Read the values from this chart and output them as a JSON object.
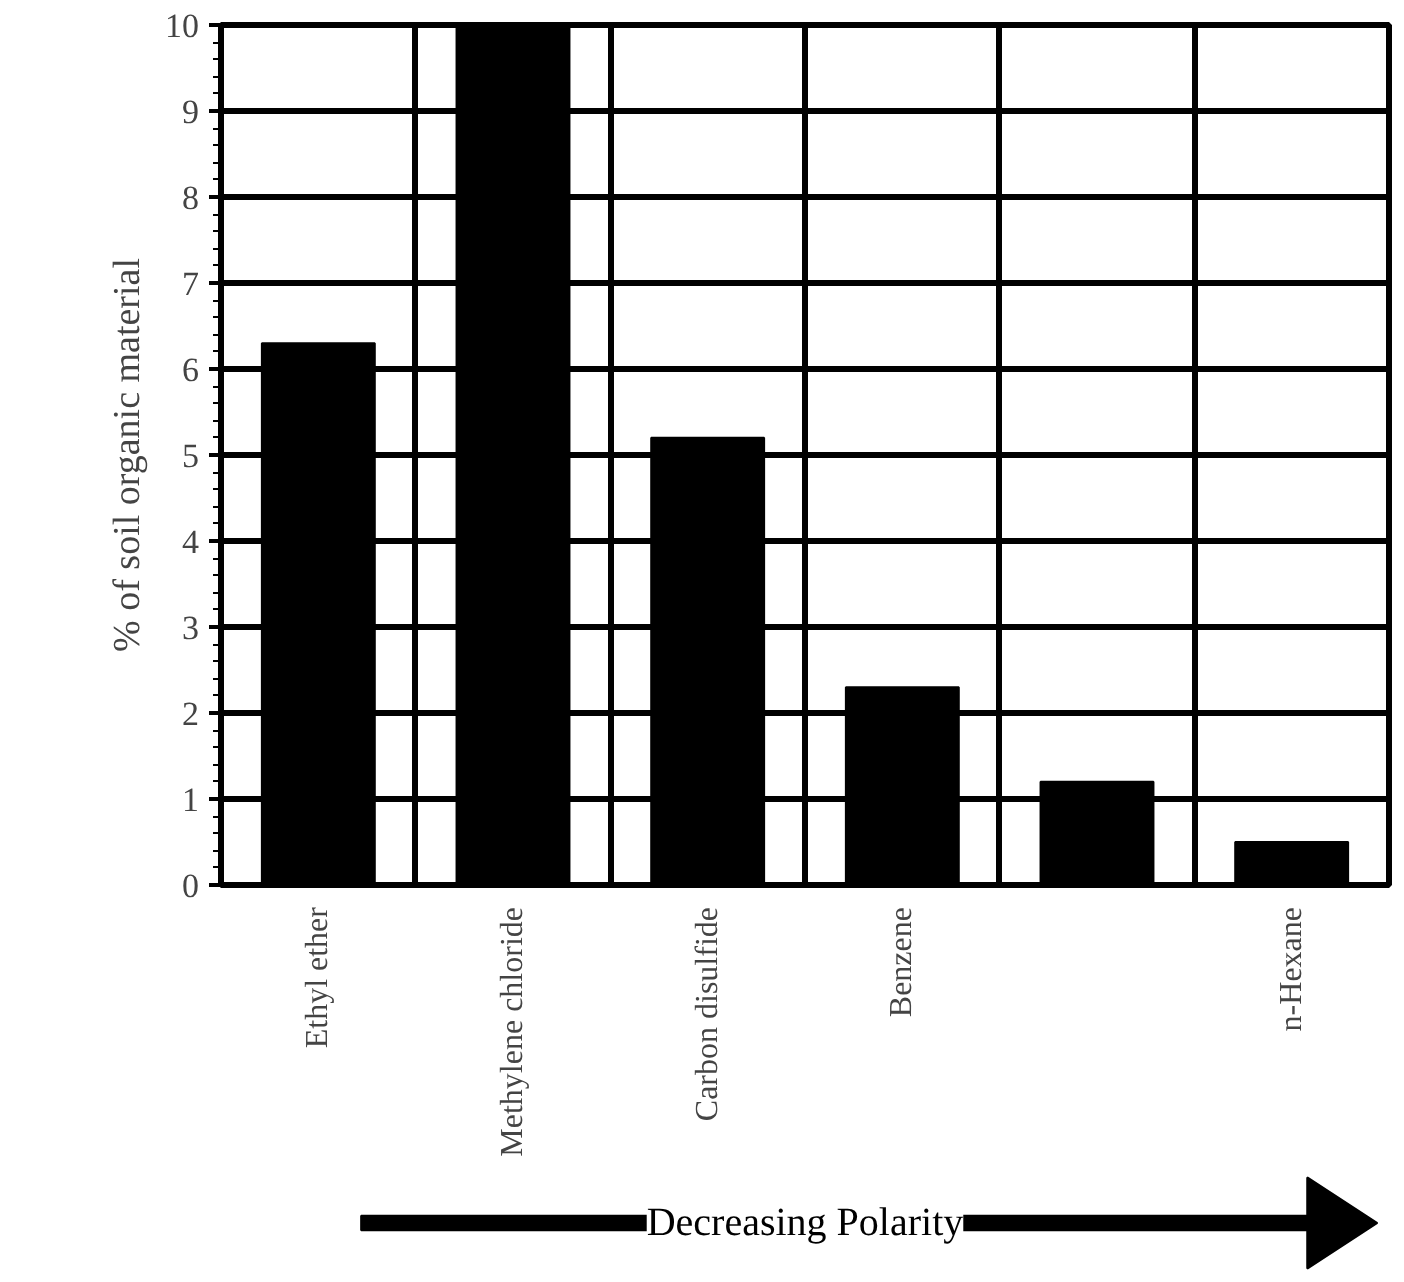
{
  "chart_data": {
    "type": "bar",
    "ylabel": "% of soil organic material",
    "categories": [
      "Ethyl ether",
      "Methylene chloride",
      "Carbon disulfide",
      "Benzene",
      null,
      "n-Hexane"
    ],
    "values": [
      6.3,
      10,
      5.2,
      2.3,
      1.2,
      0.5
    ],
    "color": "#000000",
    "ylim": [
      0,
      10
    ],
    "yticks": [
      0,
      1,
      2,
      3,
      4,
      5,
      6,
      7,
      8,
      9,
      10
    ],
    "grid": true,
    "annotations": [
      "Decreasing Polarity"
    ]
  }
}
